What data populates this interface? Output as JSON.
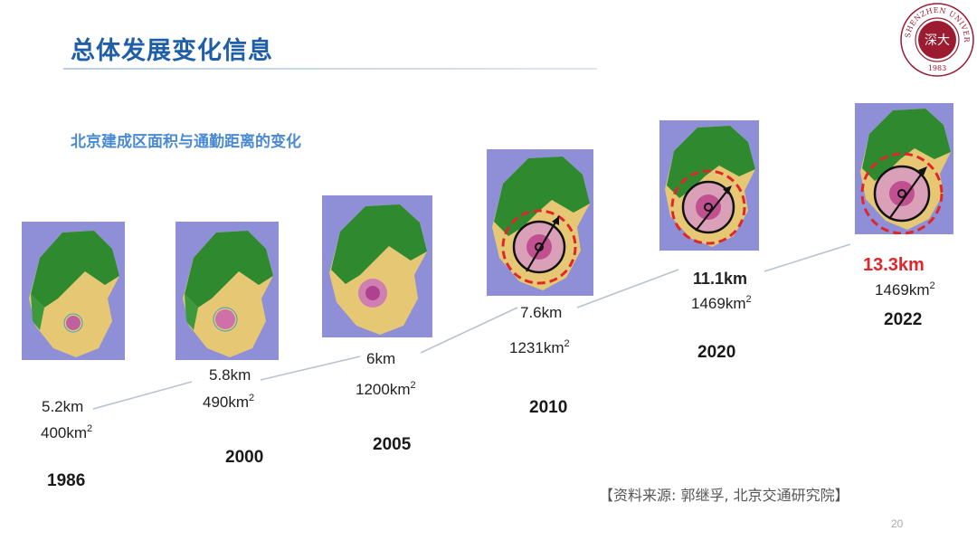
{
  "header": {
    "title": "总体发展变化信息",
    "subtitle": "北京建成区面积与通勤距离的变化"
  },
  "logo": {
    "text": "SHENZHEN UNIVERSITY",
    "year": "1983"
  },
  "panels": [
    {
      "year": "1986",
      "distance": "5.2km",
      "area": "400km",
      "area_unit_sup": "2"
    },
    {
      "year": "2000",
      "distance": "5.8km",
      "area": "490km",
      "area_unit_sup": "2"
    },
    {
      "year": "2005",
      "distance": "6km",
      "area": "1200km",
      "area_unit_sup": "2"
    },
    {
      "year": "2010",
      "distance": "7.6km",
      "area": "1231km",
      "area_unit_sup": "2"
    },
    {
      "year": "2020",
      "distance": "11.1km",
      "area": "1469km",
      "area_unit_sup": "2"
    },
    {
      "year": "2022",
      "distance": "13.3km",
      "area": "1469km",
      "area_unit_sup": "2"
    }
  ],
  "source": "【资料来源: 郭继孚, 北京交通研究院】",
  "page_number": "20",
  "colors": {
    "title": "#1f5ea8",
    "subtitle": "#4a8ad4",
    "highlight": "#e0262b",
    "map_bg": "#8f8fd8"
  }
}
